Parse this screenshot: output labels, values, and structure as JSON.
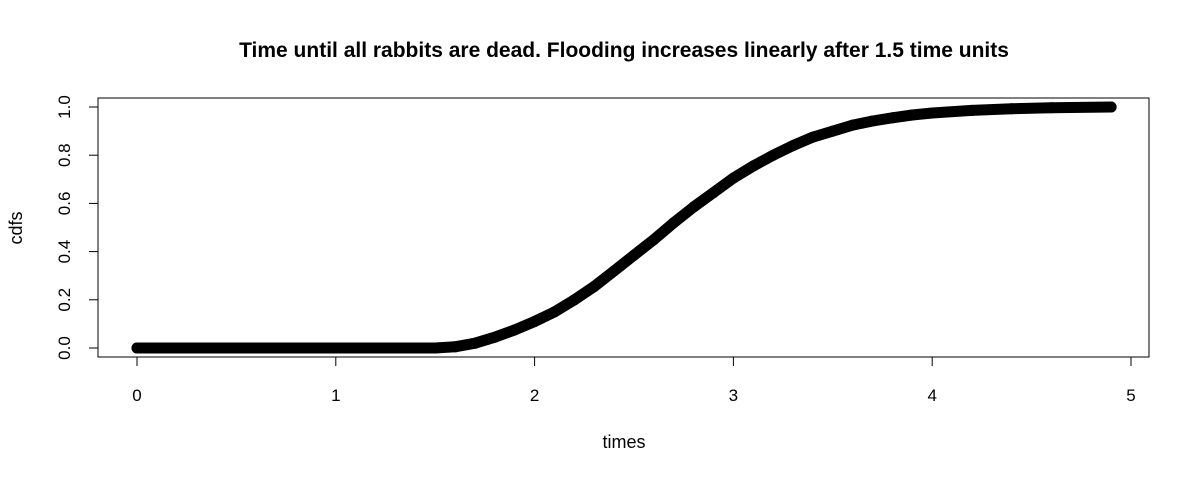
{
  "chart_data": {
    "type": "line",
    "title": "Time until all rabbits are dead. Flooding increases linearly after 1.5 time units",
    "xlabel": "times",
    "ylabel": "cdfs",
    "xlim": [
      0,
      5
    ],
    "ylim": [
      0,
      1
    ],
    "x_ticks": [
      "0",
      "1",
      "2",
      "3",
      "4",
      "5"
    ],
    "y_ticks": [
      "0.0",
      "0.2",
      "0.4",
      "0.6",
      "0.8",
      "1.0"
    ],
    "grid": false,
    "legend": "none",
    "series": [
      {
        "color": "#000000",
        "marker": "filled-circle",
        "x": [
          0.0,
          0.5,
          1.0,
          1.5,
          1.6,
          1.7,
          1.8,
          1.9,
          2.0,
          2.1,
          2.2,
          2.3,
          2.4,
          2.5,
          2.6,
          2.7,
          2.8,
          2.9,
          3.0,
          3.1,
          3.2,
          3.3,
          3.4,
          3.5,
          3.6,
          3.7,
          3.8,
          3.9,
          4.0,
          4.2,
          4.4,
          4.6,
          4.9
        ],
        "y": [
          0.0,
          0.0,
          0.0,
          0.0,
          0.005,
          0.02,
          0.045,
          0.075,
          0.11,
          0.15,
          0.2,
          0.255,
          0.32,
          0.385,
          0.45,
          0.52,
          0.585,
          0.645,
          0.705,
          0.755,
          0.8,
          0.84,
          0.875,
          0.9,
          0.925,
          0.942,
          0.955,
          0.967,
          0.975,
          0.986,
          0.993,
          0.997,
          1.0
        ]
      }
    ]
  }
}
